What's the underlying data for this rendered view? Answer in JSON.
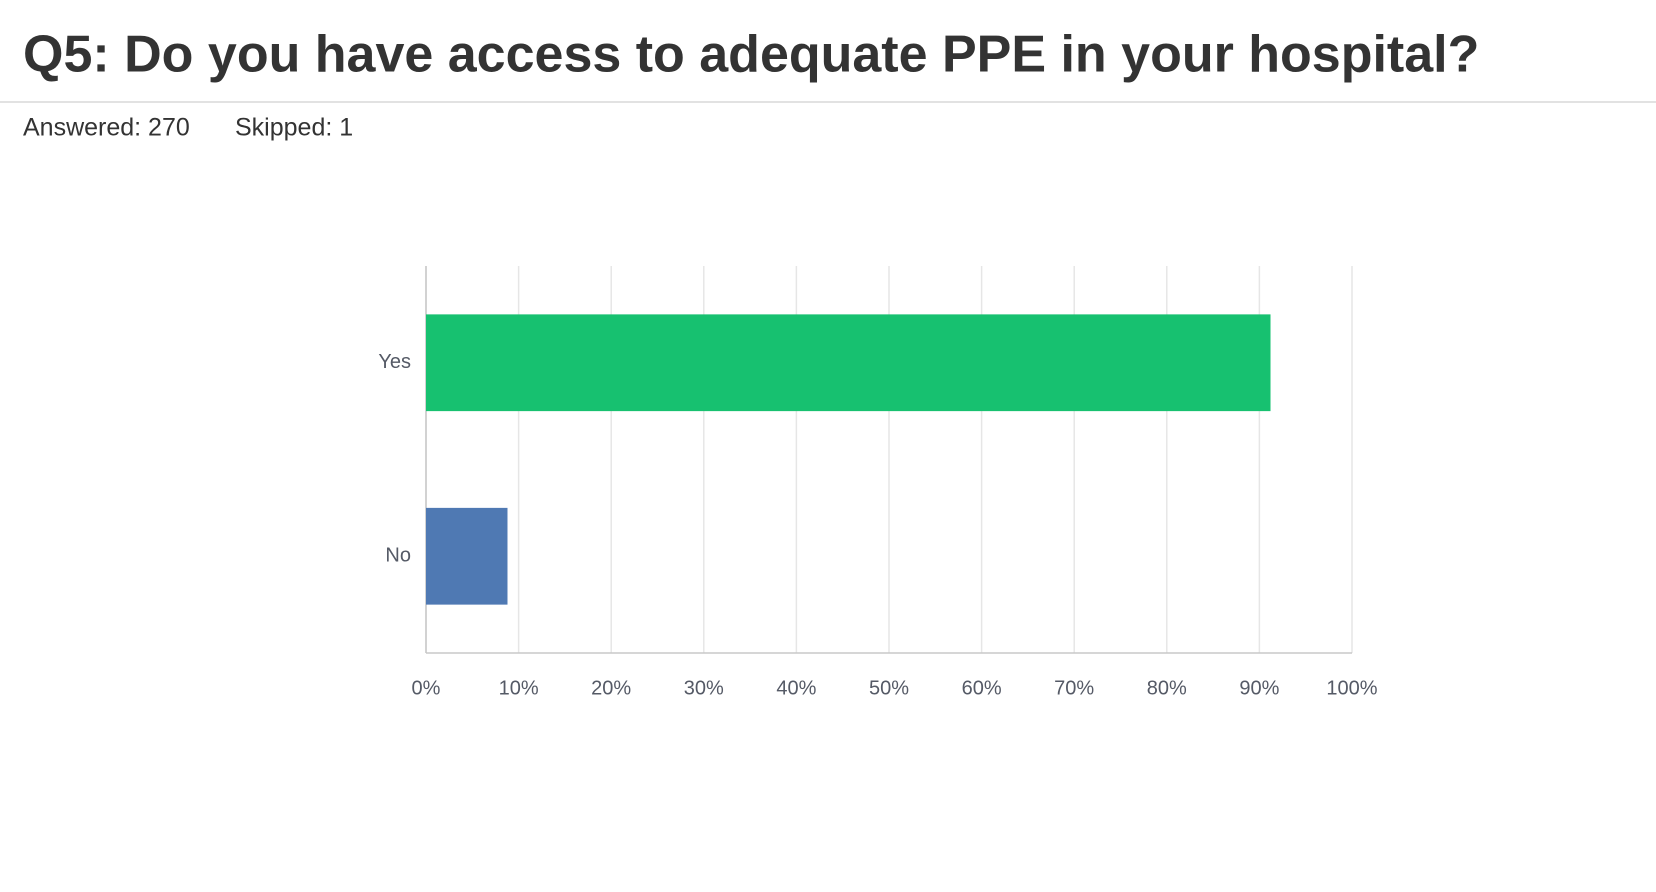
{
  "header": {
    "title": "Q5: Do you have access to adequate PPE in your hospital?",
    "answered": "Answered: 270",
    "skipped": "Skipped: 1"
  },
  "chart_data": {
    "type": "hbar",
    "categories": [
      "Yes",
      "No"
    ],
    "values": [
      91.2,
      8.8
    ],
    "colors": [
      "#17c170",
      "#4f79b3"
    ],
    "xlim": [
      0,
      100
    ],
    "xticks": [
      {
        "value": 0,
        "label": "0%"
      },
      {
        "value": 10,
        "label": "10%"
      },
      {
        "value": 20,
        "label": "20%"
      },
      {
        "value": 30,
        "label": "30%"
      },
      {
        "value": 40,
        "label": "40%"
      },
      {
        "value": 50,
        "label": "50%"
      },
      {
        "value": 60,
        "label": "60%"
      },
      {
        "value": 70,
        "label": "70%"
      },
      {
        "value": 80,
        "label": "80%"
      },
      {
        "value": 90,
        "label": "90%"
      },
      {
        "value": 100,
        "label": "100%"
      }
    ],
    "grid": true
  }
}
